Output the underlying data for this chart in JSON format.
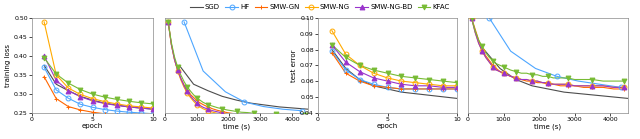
{
  "legend_entries": [
    "SGD",
    "HF",
    "SMW-GN",
    "SMW-NG",
    "SMW-NG-BD",
    "KFAC"
  ],
  "colors": {
    "SGD": "#4d4d4d",
    "HF": "#4da6ff",
    "SMW-GN": "#ff6600",
    "SMW-NG": "#ffaa00",
    "SMW-NG-BD": "#9933cc",
    "KFAC": "#77bb33"
  },
  "markers": {
    "SGD": "None",
    "HF": "o",
    "SMW-GN": "+",
    "SMW-NG": "o",
    "SMW-NG-BD": "^",
    "KFAC": "v"
  },
  "plot1_epoch": {
    "SGD": [
      1,
      2,
      3,
      4,
      5,
      6,
      7,
      8,
      9,
      10
    ],
    "HF": [
      1,
      2,
      3,
      4,
      5,
      6,
      7,
      8,
      9,
      10
    ],
    "SMW-GN": [
      1,
      2,
      3,
      4,
      5,
      6,
      7,
      8,
      9,
      10
    ],
    "SMW-NG": [
      1,
      2,
      3,
      4,
      5,
      6,
      7,
      8,
      9,
      10
    ],
    "SMW-NG-BD": [
      1,
      2,
      3,
      4,
      5,
      6,
      7,
      8,
      9,
      10
    ],
    "KFAC": [
      1,
      2,
      3,
      4,
      5,
      6,
      7,
      8,
      9,
      10
    ]
  },
  "plot1_loss": {
    "SGD": [
      0.375,
      0.325,
      0.308,
      0.293,
      0.283,
      0.275,
      0.27,
      0.265,
      0.262,
      0.259
    ],
    "HF": [
      0.37,
      0.31,
      0.288,
      0.272,
      0.264,
      0.258,
      0.254,
      0.251,
      0.249,
      0.247
    ],
    "SMW-GN": [
      0.345,
      0.287,
      0.266,
      0.257,
      0.251,
      0.247,
      0.244,
      0.242,
      0.24,
      0.239
    ],
    "SMW-NG": [
      0.49,
      0.35,
      0.315,
      0.298,
      0.287,
      0.279,
      0.273,
      0.268,
      0.265,
      0.262
    ],
    "SMW-NG-BD": [
      0.4,
      0.335,
      0.308,
      0.292,
      0.281,
      0.274,
      0.269,
      0.265,
      0.262,
      0.259
    ],
    "KFAC": [
      0.395,
      0.352,
      0.328,
      0.311,
      0.299,
      0.291,
      0.285,
      0.28,
      0.276,
      0.273
    ]
  },
  "plot2_time": {
    "SGD": [
      450,
      900,
      1350,
      1800,
      2250,
      2700,
      3150,
      3600,
      4050,
      4500
    ],
    "HF": [
      600,
      1200,
      1900,
      2500,
      3100,
      3700,
      4300
    ],
    "SMW-GN": [
      100,
      200,
      300,
      400,
      500,
      600,
      700,
      800,
      900,
      1000,
      1100,
      1200,
      1350,
      1500,
      1650,
      1800,
      1950,
      2100,
      2250,
      2400,
      2600,
      2800,
      3000,
      3250,
      3500,
      3800,
      4100,
      4400
    ],
    "SMW-NG": [
      100,
      200,
      300,
      400,
      500,
      600,
      700,
      800,
      900,
      1000,
      1100,
      1200,
      1350,
      1500,
      1650,
      1800,
      1950,
      2100,
      2250,
      2400,
      2600,
      2800,
      3000,
      3250,
      3500,
      3800,
      4100,
      4400
    ],
    "SMW-NG-BD": [
      100,
      200,
      300,
      400,
      500,
      600,
      700,
      800,
      900,
      1000,
      1100,
      1200,
      1350,
      1500,
      1650,
      1800,
      1950,
      2100,
      2250,
      2400,
      2600,
      2800,
      3000,
      3250,
      3500,
      3800,
      4100,
      4400
    ],
    "KFAC": [
      100,
      200,
      300,
      400,
      500,
      600,
      700,
      800,
      900,
      1000,
      1100,
      1200,
      1350,
      1500,
      1650,
      1800,
      1950,
      2100,
      2250,
      2400,
      2600,
      2800,
      3000,
      3250,
      3500,
      3800,
      4100,
      4400
    ]
  },
  "plot2_loss": {
    "SGD": [
      0.375,
      0.325,
      0.308,
      0.293,
      0.283,
      0.275,
      0.27,
      0.265,
      0.262,
      0.259
    ],
    "HF": [
      0.49,
      0.36,
      0.305,
      0.278,
      0.266,
      0.259,
      0.255
    ],
    "SMW-GN": [
      0.49,
      0.43,
      0.39,
      0.362,
      0.34,
      0.323,
      0.309,
      0.298,
      0.29,
      0.282,
      0.276,
      0.271,
      0.265,
      0.26,
      0.256,
      0.253,
      0.25,
      0.248,
      0.246,
      0.244,
      0.243,
      0.242,
      0.241,
      0.24,
      0.239,
      0.239,
      0.238,
      0.238
    ],
    "SMW-NG": [
      0.49,
      0.43,
      0.39,
      0.36,
      0.336,
      0.317,
      0.302,
      0.29,
      0.28,
      0.271,
      0.265,
      0.26,
      0.255,
      0.251,
      0.248,
      0.245,
      0.243,
      0.241,
      0.239,
      0.238,
      0.237,
      0.236,
      0.235,
      0.235,
      0.234,
      0.234,
      0.234,
      0.234
    ],
    "SMW-NG-BD": [
      0.49,
      0.43,
      0.39,
      0.362,
      0.34,
      0.321,
      0.306,
      0.294,
      0.284,
      0.276,
      0.269,
      0.264,
      0.259,
      0.255,
      0.252,
      0.249,
      0.247,
      0.245,
      0.243,
      0.242,
      0.241,
      0.24,
      0.239,
      0.238,
      0.238,
      0.237,
      0.237,
      0.237
    ],
    "KFAC": [
      0.49,
      0.435,
      0.397,
      0.37,
      0.349,
      0.332,
      0.318,
      0.307,
      0.297,
      0.289,
      0.283,
      0.277,
      0.271,
      0.267,
      0.263,
      0.26,
      0.257,
      0.255,
      0.253,
      0.251,
      0.25,
      0.248,
      0.247,
      0.246,
      0.245,
      0.245,
      0.244,
      0.244
    ]
  },
  "plot3_epoch": {
    "SGD": [
      1,
      2,
      3,
      4,
      5,
      6,
      7,
      8,
      9,
      10
    ],
    "HF": [
      1,
      2,
      3,
      4,
      5,
      6,
      7,
      8,
      9,
      10
    ],
    "SMW-GN": [
      1,
      2,
      3,
      4,
      5,
      6,
      7,
      8,
      9,
      10
    ],
    "SMW-NG": [
      1,
      2,
      3,
      4,
      5,
      6,
      7,
      8,
      9,
      10
    ],
    "SMW-NG-BD": [
      1,
      2,
      3,
      4,
      5,
      6,
      7,
      8,
      9,
      10
    ],
    "KFAC": [
      1,
      2,
      3,
      4,
      5,
      6,
      7,
      8,
      9,
      10
    ]
  },
  "plot3_error": {
    "SGD": [
      0.08,
      0.068,
      0.061,
      0.057,
      0.055,
      0.053,
      0.052,
      0.051,
      0.05,
      0.049
    ],
    "HF": [
      0.079,
      0.067,
      0.061,
      0.058,
      0.056,
      0.055,
      0.055,
      0.055,
      0.055,
      0.055
    ],
    "SMW-GN": [
      0.078,
      0.065,
      0.06,
      0.057,
      0.056,
      0.055,
      0.055,
      0.055,
      0.055,
      0.055
    ],
    "SMW-NG": [
      0.092,
      0.077,
      0.07,
      0.065,
      0.062,
      0.06,
      0.059,
      0.058,
      0.057,
      0.057
    ],
    "SMW-NG-BD": [
      0.083,
      0.072,
      0.066,
      0.062,
      0.06,
      0.058,
      0.057,
      0.057,
      0.056,
      0.056
    ],
    "KFAC": [
      0.083,
      0.075,
      0.07,
      0.067,
      0.065,
      0.063,
      0.062,
      0.061,
      0.06,
      0.059
    ]
  },
  "plot4_time": {
    "SGD": [
      450,
      900,
      1350,
      1800,
      2250,
      2700,
      3150,
      3600,
      4050,
      4500
    ],
    "HF": [
      600,
      1200,
      1900,
      2500,
      3100,
      3700,
      4300
    ],
    "SMW-GN": [
      100,
      200,
      300,
      400,
      500,
      600,
      700,
      800,
      900,
      1000,
      1100,
      1200,
      1350,
      1500,
      1650,
      1800,
      1950,
      2100,
      2250,
      2400,
      2600,
      2800,
      3000,
      3250,
      3500,
      3800,
      4100,
      4400
    ],
    "SMW-NG": [
      100,
      200,
      300,
      400,
      500,
      600,
      700,
      800,
      900,
      1000,
      1100,
      1200,
      1350,
      1500,
      1650,
      1800,
      1950,
      2100,
      2250,
      2400,
      2600,
      2800,
      3000,
      3250,
      3500,
      3800,
      4100,
      4400
    ],
    "SMW-NG-BD": [
      100,
      200,
      300,
      400,
      500,
      600,
      700,
      800,
      900,
      1000,
      1100,
      1200,
      1350,
      1500,
      1650,
      1800,
      1950,
      2100,
      2250,
      2400,
      2600,
      2800,
      3000,
      3250,
      3500,
      3800,
      4100,
      4400
    ],
    "KFAC": [
      100,
      200,
      300,
      400,
      500,
      600,
      700,
      800,
      900,
      1000,
      1100,
      1200,
      1350,
      1500,
      1650,
      1800,
      1950,
      2100,
      2250,
      2400,
      2600,
      2800,
      3000,
      3250,
      3500,
      3800,
      4100,
      4400
    ]
  },
  "plot4_error": {
    "SGD": [
      0.08,
      0.068,
      0.061,
      0.057,
      0.055,
      0.053,
      0.052,
      0.051,
      0.05,
      0.049
    ],
    "HF": [
      0.1,
      0.079,
      0.068,
      0.063,
      0.06,
      0.058,
      0.056
    ],
    "SMW-GN": [
      0.1,
      0.093,
      0.086,
      0.08,
      0.076,
      0.073,
      0.07,
      0.068,
      0.066,
      0.065,
      0.064,
      0.063,
      0.062,
      0.061,
      0.06,
      0.06,
      0.059,
      0.059,
      0.058,
      0.058,
      0.057,
      0.057,
      0.057,
      0.056,
      0.056,
      0.056,
      0.055,
      0.055
    ],
    "SMW-NG": [
      0.1,
      0.091,
      0.084,
      0.079,
      0.075,
      0.072,
      0.069,
      0.067,
      0.066,
      0.065,
      0.064,
      0.063,
      0.062,
      0.061,
      0.061,
      0.06,
      0.06,
      0.059,
      0.059,
      0.058,
      0.058,
      0.058,
      0.057,
      0.057,
      0.057,
      0.057,
      0.056,
      0.056
    ],
    "SMW-NG-BD": [
      0.1,
      0.091,
      0.084,
      0.079,
      0.075,
      0.072,
      0.069,
      0.067,
      0.066,
      0.065,
      0.064,
      0.063,
      0.062,
      0.061,
      0.061,
      0.06,
      0.06,
      0.059,
      0.059,
      0.058,
      0.058,
      0.058,
      0.057,
      0.057,
      0.057,
      0.057,
      0.056,
      0.056
    ],
    "KFAC": [
      0.1,
      0.092,
      0.086,
      0.082,
      0.078,
      0.075,
      0.073,
      0.071,
      0.07,
      0.069,
      0.068,
      0.067,
      0.066,
      0.065,
      0.065,
      0.064,
      0.064,
      0.063,
      0.063,
      0.062,
      0.062,
      0.062,
      0.061,
      0.061,
      0.061,
      0.06,
      0.06,
      0.06
    ]
  },
  "ylim1": [
    0.25,
    0.5
  ],
  "ylim2": [
    0.25,
    0.5
  ],
  "ylim3": [
    0.04,
    0.1
  ],
  "ylim4": [
    0.04,
    0.1
  ],
  "xlim1": [
    0,
    10
  ],
  "xlim2": [
    0,
    4500
  ],
  "xlim3": [
    0,
    10
  ],
  "xlim4": [
    0,
    4500
  ],
  "yticks1": [
    0.25,
    0.3,
    0.35,
    0.4,
    0.45,
    0.5
  ],
  "yticks3": [
    0.04,
    0.05,
    0.06,
    0.07,
    0.08,
    0.09,
    0.1
  ],
  "xticks12": [
    0,
    1000,
    2000,
    3000,
    4000
  ],
  "xticks_epoch": [
    0,
    5,
    10
  ],
  "xlabel_epoch": "epoch",
  "xlabel_time": "time (s)",
  "ylabel1": "training loss",
  "ylabel3": "test error",
  "marker_size": 3.5,
  "linewidth": 0.8,
  "bg": "#ffffff"
}
